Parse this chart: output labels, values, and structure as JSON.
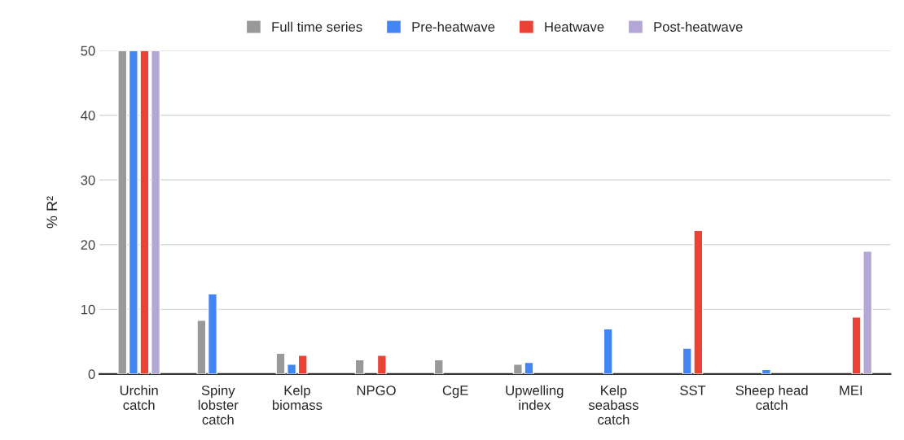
{
  "chart_data": {
    "type": "bar",
    "ylabel": "% R²",
    "categories": [
      "Urchin\ncatch",
      "Spiny\nlobster\ncatch",
      "Kelp\nbiomass",
      "NPGO",
      "CgE",
      "Upwelling\nindex",
      "Kelp\nseabass\ncatch",
      "SST",
      "Sheep head\ncatch",
      "MEI"
    ],
    "series": [
      {
        "name": "Full time series",
        "color": "#999999",
        "values": [
          50,
          8.3,
          3.2,
          2.2,
          2.2,
          1.5,
          null,
          null,
          null,
          null
        ]
      },
      {
        "name": "Pre-heatwave",
        "color": "#4285f4",
        "values": [
          50,
          12.4,
          1.5,
          null,
          null,
          1.8,
          7.0,
          4.0,
          0.7,
          null
        ]
      },
      {
        "name": "Heatwave",
        "color": "#ea4335",
        "values": [
          50,
          null,
          2.9,
          2.9,
          null,
          null,
          null,
          22.2,
          null,
          8.8
        ]
      },
      {
        "name": "Post-heatwave",
        "color": "#b4a7d6",
        "values": [
          50,
          null,
          null,
          null,
          null,
          null,
          null,
          null,
          null,
          19.0
        ]
      }
    ],
    "ylim": [
      0,
      50
    ],
    "yticks": [
      0,
      10,
      20,
      30,
      40,
      50
    ],
    "grid": "y",
    "legend": "top"
  }
}
